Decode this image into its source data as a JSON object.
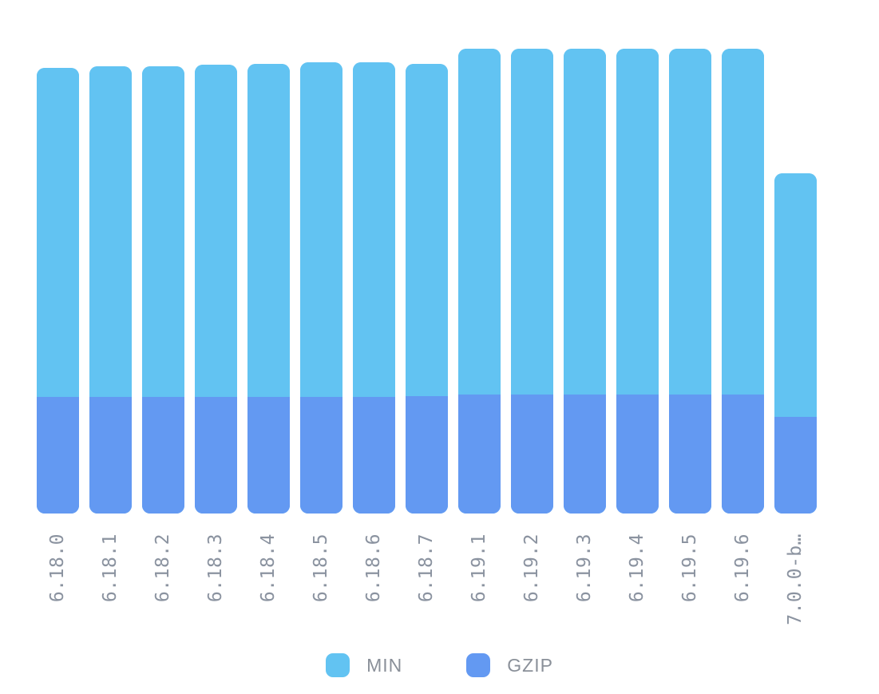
{
  "page": {
    "background": "#ffffff"
  },
  "style": {
    "min_color": "#62c3f2",
    "gzip_color": "#6399f2",
    "axis_label_color": "#8b93a0",
    "legend_text_color": "#8a9099"
  },
  "chart_data": {
    "type": "bar",
    "stacked": true,
    "orientation": "vertical",
    "title": "",
    "xlabel": "",
    "ylabel": "",
    "grid": false,
    "numeric_axis_shown": false,
    "legend_position": "bottom",
    "categories": [
      "6.18.0",
      "6.18.1",
      "6.18.2",
      "6.18.3",
      "6.18.4",
      "6.18.5",
      "6.18.6",
      "6.18.7",
      "6.19.1",
      "6.19.2",
      "6.19.3",
      "6.19.4",
      "6.19.5",
      "6.19.6",
      "7.0.0-b…"
    ],
    "category_display_lines": [
      [
        "6.18.0"
      ],
      [
        "6.18.1"
      ],
      [
        "6.18.2"
      ],
      [
        "6.18.3"
      ],
      [
        "6.18.4"
      ],
      [
        "6.18.5"
      ],
      [
        "6.18.6"
      ],
      [
        "6.18.7"
      ],
      [
        "6.19.1"
      ],
      [
        "6.19.2"
      ],
      [
        "6.19.3"
      ],
      [
        "6.19.4"
      ],
      [
        "6.19.5"
      ],
      [
        "6.19.6"
      ],
      [
        "7.0.0-",
        "b…"
      ]
    ],
    "series": [
      {
        "name": "MIN",
        "color": "#62c3f2",
        "values": [
          412,
          414,
          414,
          416,
          417,
          419,
          419,
          416,
          433,
          433,
          433,
          433,
          433,
          433,
          305
        ]
      },
      {
        "name": "GZIP",
        "color": "#6399f2",
        "values": [
          146,
          146,
          146,
          146,
          146,
          146,
          146,
          147,
          149,
          149,
          149,
          149,
          149,
          149,
          121
        ]
      }
    ],
    "value_unit": "px",
    "value_note": "No numeric axis, tick values or data labels are rendered in the chart; series values are the measured on-screen heights (in screenshot pixels) of each stacked segment. GZIP segment renders at the bottom of each bar, MIN segment above it."
  },
  "legend": {
    "items": [
      {
        "label": "MIN",
        "color": "#62c3f2"
      },
      {
        "label": "GZIP",
        "color": "#6399f2"
      }
    ]
  }
}
